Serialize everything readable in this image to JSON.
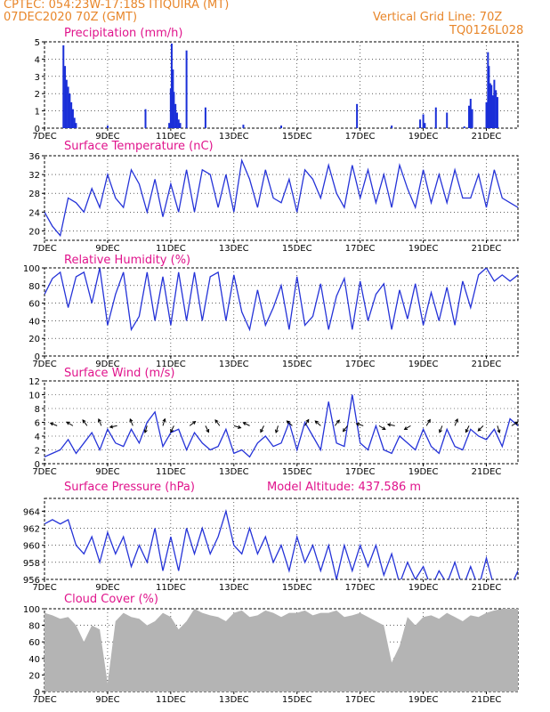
{
  "header": {
    "station": "CPTEC:   054:23W-17:18S   ITIQUIRA (MT)",
    "date": "07DEC2020 70Z (GMT)",
    "grid_line": "Vertical Grid Line: 70Z",
    "model": "TQ0126L028"
  },
  "colors": {
    "header": "#e8862a",
    "title": "#e0148c",
    "line": "#2533d8",
    "bar": "#1a2fd8",
    "cloud": "#b4b4b4"
  },
  "x_ticks": [
    "7DEC",
    "9DEC",
    "11DEC",
    "13DEC",
    "15DEC",
    "17DEC",
    "19DEC",
    "21DEC"
  ],
  "chart_data": [
    {
      "type": "bar",
      "title": "Precipitation (mm/h)",
      "x_day_range": [
        7,
        22
      ],
      "ylim": [
        0,
        5
      ],
      "y_ticks": [
        "0",
        "1",
        "2",
        "3",
        "4",
        "5"
      ],
      "bars": [
        [
          7.6,
          4.8
        ],
        [
          7.65,
          3.6
        ],
        [
          7.7,
          2.8
        ],
        [
          7.75,
          2.4
        ],
        [
          7.8,
          2.0
        ],
        [
          7.85,
          1.5
        ],
        [
          7.9,
          1.1
        ],
        [
          7.95,
          0.6
        ],
        [
          8.0,
          0.3
        ],
        [
          9.0,
          0.15
        ],
        [
          10.2,
          1.1
        ],
        [
          10.95,
          0.3
        ],
        [
          11.0,
          2.3
        ],
        [
          11.03,
          4.9
        ],
        [
          11.07,
          3.4
        ],
        [
          11.1,
          2.1
        ],
        [
          11.15,
          1.4
        ],
        [
          11.2,
          0.9
        ],
        [
          11.25,
          0.5
        ],
        [
          11.3,
          0.3
        ],
        [
          11.5,
          4.5
        ],
        [
          12.1,
          1.2
        ],
        [
          13.3,
          0.2
        ],
        [
          14.5,
          0.15
        ],
        [
          16.9,
          1.4
        ],
        [
          18.0,
          0.15
        ],
        [
          18.9,
          0.5
        ],
        [
          19.0,
          0.8
        ],
        [
          19.05,
          0.3
        ],
        [
          19.4,
          1.2
        ],
        [
          19.75,
          0.9
        ],
        [
          20.3,
          0.1
        ],
        [
          20.45,
          1.3
        ],
        [
          20.5,
          1.7
        ],
        [
          20.55,
          1.1
        ],
        [
          21.0,
          1.5
        ],
        [
          21.05,
          4.4
        ],
        [
          21.08,
          3.6
        ],
        [
          21.12,
          2.6
        ],
        [
          21.16,
          2.5
        ],
        [
          21.2,
          1.9
        ],
        [
          21.25,
          2.8
        ],
        [
          21.3,
          2.2
        ],
        [
          21.35,
          1.8
        ]
      ],
      "x_ticks": [
        "7DEC",
        "9DEC",
        "11DEC",
        "13DEC",
        "15DEC",
        "17DEC",
        "19DEC",
        "21DEC"
      ]
    },
    {
      "type": "line",
      "title": "Surface Temperature (nC)",
      "x_day_range": [
        7,
        22
      ],
      "ylim": [
        18,
        36
      ],
      "y_ticks": [
        "20",
        "24",
        "28",
        "32",
        "36"
      ],
      "y_tick_values": [
        20,
        24,
        28,
        32,
        36
      ],
      "x": [
        7.0,
        7.25,
        7.5,
        7.75,
        8.0,
        8.25,
        8.5,
        8.75,
        9.0,
        9.25,
        9.5,
        9.75,
        10.0,
        10.25,
        10.5,
        10.75,
        11.0,
        11.25,
        11.5,
        11.75,
        12.0,
        12.25,
        12.5,
        12.75,
        13.0,
        13.25,
        13.5,
        13.75,
        14.0,
        14.25,
        14.5,
        14.75,
        15.0,
        15.25,
        15.5,
        15.75,
        16.0,
        16.25,
        16.5,
        16.75,
        17.0,
        17.25,
        17.5,
        17.75,
        18.0,
        18.25,
        18.5,
        18.75,
        19.0,
        19.25,
        19.5,
        19.75,
        20.0,
        20.25,
        20.5,
        20.75,
        21.0,
        21.25,
        21.5,
        21.75,
        22.0
      ],
      "y": [
        24,
        21,
        19,
        27,
        26,
        24,
        29,
        25,
        32,
        27,
        25,
        33,
        30,
        24,
        31,
        23,
        30,
        24,
        33,
        24,
        33,
        32,
        25,
        32,
        24,
        35,
        31,
        25,
        33,
        27,
        26,
        31,
        24,
        33,
        31,
        27,
        34,
        28,
        25,
        34,
        27,
        33,
        26,
        32,
        25,
        34,
        29,
        25,
        33,
        26,
        32,
        26,
        33,
        27,
        27,
        32,
        25,
        33,
        27,
        26,
        25
      ]
    },
    {
      "type": "line",
      "title": "Relative Humidity (%)",
      "x_day_range": [
        7,
        22
      ],
      "ylim": [
        0,
        100
      ],
      "y_ticks": [
        "0",
        "20",
        "40",
        "60",
        "80",
        "100"
      ],
      "y_tick_values": [
        0,
        20,
        40,
        60,
        80,
        100
      ],
      "x": [
        7.0,
        7.25,
        7.5,
        7.75,
        8.0,
        8.25,
        8.5,
        8.75,
        9.0,
        9.25,
        9.5,
        9.75,
        10.0,
        10.25,
        10.5,
        10.75,
        11.0,
        11.25,
        11.5,
        11.75,
        12.0,
        12.25,
        12.5,
        12.75,
        13.0,
        13.25,
        13.5,
        13.75,
        14.0,
        14.25,
        14.5,
        14.75,
        15.0,
        15.25,
        15.5,
        15.75,
        16.0,
        16.25,
        16.5,
        16.75,
        17.0,
        17.25,
        17.5,
        17.75,
        18.0,
        18.25,
        18.5,
        18.75,
        19.0,
        19.25,
        19.5,
        19.75,
        20.0,
        20.25,
        20.5,
        20.75,
        21.0,
        21.25,
        21.5,
        21.75,
        22.0
      ],
      "y": [
        70,
        88,
        95,
        55,
        90,
        95,
        60,
        100,
        35,
        70,
        95,
        30,
        45,
        95,
        40,
        90,
        35,
        95,
        40,
        95,
        40,
        90,
        95,
        40,
        92,
        50,
        30,
        75,
        35,
        55,
        80,
        30,
        90,
        35,
        45,
        82,
        30,
        68,
        88,
        30,
        85,
        40,
        70,
        82,
        30,
        75,
        42,
        82,
        35,
        72,
        40,
        78,
        35,
        85,
        55,
        92,
        100,
        85,
        92,
        85,
        92
      ]
    },
    {
      "type": "line",
      "title": "Surface Wind (m/s)",
      "x_day_range": [
        7,
        22
      ],
      "ylim": [
        0,
        12
      ],
      "y_ticks": [
        "0",
        "2",
        "4",
        "6",
        "8",
        "10",
        "12"
      ],
      "y_tick_values": [
        0,
        2,
        4,
        6,
        8,
        10,
        12
      ],
      "x": [
        7.0,
        7.25,
        7.5,
        7.75,
        8.0,
        8.25,
        8.5,
        8.75,
        9.0,
        9.25,
        9.5,
        9.75,
        10.0,
        10.25,
        10.5,
        10.75,
        11.0,
        11.25,
        11.5,
        11.75,
        12.0,
        12.25,
        12.5,
        12.75,
        13.0,
        13.25,
        13.5,
        13.75,
        14.0,
        14.25,
        14.5,
        14.75,
        15.0,
        15.25,
        15.5,
        15.75,
        16.0,
        16.25,
        16.5,
        16.75,
        17.0,
        17.25,
        17.5,
        17.75,
        18.0,
        18.25,
        18.5,
        18.75,
        19.0,
        19.25,
        19.5,
        19.75,
        20.0,
        20.25,
        20.5,
        20.75,
        21.0,
        21.25,
        21.5,
        21.75,
        22.0
      ],
      "y": [
        1,
        1.5,
        2,
        3.5,
        1.5,
        3,
        4.5,
        2,
        5,
        3,
        2.5,
        5,
        3,
        6,
        7.5,
        2.5,
        4.5,
        5,
        2,
        4.5,
        3,
        2,
        2.5,
        5,
        1.5,
        2,
        1,
        3,
        4,
        2.5,
        3,
        6,
        2,
        6,
        4,
        2,
        9,
        3,
        2.5,
        10,
        3,
        2,
        5.5,
        2,
        1.5,
        4,
        3,
        2,
        5,
        2.5,
        1.5,
        5,
        2.5,
        2,
        5,
        4,
        3.5,
        5,
        2.5,
        6.5,
        5.5
      ],
      "arrows": [
        [
          7.4,
          -1.0,
          0.4
        ],
        [
          7.9,
          -1.0,
          0.6
        ],
        [
          8.35,
          -0.6,
          0.8
        ],
        [
          8.8,
          -0.4,
          1.0
        ],
        [
          9.3,
          -1.0,
          -0.2
        ],
        [
          9.8,
          -0.4,
          1.0
        ],
        [
          10.25,
          -0.3,
          -1.0
        ],
        [
          10.75,
          0.3,
          1.0
        ],
        [
          11.1,
          -0.5,
          -1.0
        ],
        [
          11.6,
          0.8,
          0.6
        ],
        [
          12.1,
          0.5,
          -1.0
        ],
        [
          12.55,
          -0.6,
          0.8
        ],
        [
          13.0,
          1.0,
          -0.3
        ],
        [
          13.5,
          -1.0,
          0.5
        ],
        [
          13.95,
          -0.5,
          -1.0
        ],
        [
          14.4,
          -0.3,
          -1.0
        ],
        [
          14.85,
          -0.9,
          0.8
        ],
        [
          15.25,
          0.6,
          1.0
        ],
        [
          15.75,
          -0.8,
          0.7
        ],
        [
          16.2,
          0.8,
          1.0
        ],
        [
          16.6,
          -0.7,
          -0.9
        ],
        [
          17.1,
          -1.0,
          0.3
        ],
        [
          17.6,
          1.0,
          -0.6
        ],
        [
          18.1,
          -1.0,
          0.2
        ],
        [
          18.6,
          -1.0,
          -0.6
        ],
        [
          19.1,
          0.6,
          1.0
        ],
        [
          19.6,
          -0.4,
          -1.0
        ],
        [
          20.0,
          0.4,
          1.0
        ],
        [
          20.45,
          -0.5,
          -1.0
        ],
        [
          20.9,
          -0.8,
          -0.8
        ],
        [
          21.35,
          0.3,
          -1.0
        ],
        [
          21.8,
          1.0,
          0.6
        ]
      ]
    },
    {
      "type": "line",
      "title": "Surface Pressure (hPa)",
      "subtitle": "Model Altitude: 437.586  m",
      "x_day_range": [
        7,
        22
      ],
      "ylim": [
        956,
        965.5
      ],
      "y_ticks": [
        "956",
        "958",
        "960",
        "962",
        "964"
      ],
      "y_tick_values": [
        956,
        958,
        960,
        962,
        964
      ],
      "x": [
        7.0,
        7.25,
        7.5,
        7.75,
        8.0,
        8.25,
        8.5,
        8.75,
        9.0,
        9.25,
        9.5,
        9.75,
        10.0,
        10.25,
        10.5,
        10.75,
        11.0,
        11.25,
        11.5,
        11.75,
        12.0,
        12.25,
        12.5,
        12.75,
        13.0,
        13.25,
        13.5,
        13.75,
        14.0,
        14.25,
        14.5,
        14.75,
        15.0,
        15.25,
        15.5,
        15.75,
        16.0,
        16.25,
        16.5,
        16.75,
        17.0,
        17.25,
        17.5,
        17.75,
        18.0,
        18.25,
        18.5,
        18.75,
        19.0,
        19.25,
        19.5,
        19.75,
        20.0,
        20.25,
        20.5,
        20.75,
        21.0,
        21.25,
        21.5,
        21.75,
        22.0
      ],
      "y": [
        962.5,
        963,
        962.5,
        963,
        960,
        959,
        961,
        958,
        961.5,
        959,
        961,
        957.5,
        960,
        958,
        962,
        957,
        961,
        957,
        962,
        959,
        962,
        959,
        961,
        964,
        960,
        959,
        962,
        959,
        961,
        958,
        960,
        957,
        961,
        958,
        960,
        957,
        960,
        956,
        960,
        957,
        960,
        957.5,
        960,
        956.5,
        959,
        955.5,
        958,
        956,
        957.5,
        955,
        957,
        955.5,
        958,
        955,
        957.5,
        955,
        958.5,
        955,
        954.5,
        955,
        957
      ]
    },
    {
      "type": "area",
      "title": "Cloud Cover (%)",
      "x_day_range": [
        7,
        22
      ],
      "ylim": [
        0,
        100
      ],
      "y_ticks": [
        "0",
        "20",
        "40",
        "60",
        "80",
        "100"
      ],
      "y_tick_values": [
        0,
        20,
        40,
        60,
        80,
        100
      ],
      "x": [
        7.0,
        7.25,
        7.5,
        7.75,
        8.0,
        8.25,
        8.5,
        8.75,
        9.0,
        9.25,
        9.5,
        9.75,
        10.0,
        10.25,
        10.5,
        10.75,
        11.0,
        11.25,
        11.5,
        11.75,
        12.0,
        12.25,
        12.5,
        12.75,
        13.0,
        13.25,
        13.5,
        13.75,
        14.0,
        14.25,
        14.5,
        14.75,
        15.0,
        15.25,
        15.5,
        15.75,
        16.0,
        16.25,
        16.5,
        16.75,
        17.0,
        17.25,
        17.5,
        17.75,
        18.0,
        18.25,
        18.5,
        18.75,
        19.0,
        19.25,
        19.5,
        19.75,
        20.0,
        20.25,
        20.5,
        20.75,
        21.0,
        21.25,
        21.5,
        21.75,
        22.0
      ],
      "y": [
        95,
        92,
        88,
        90,
        80,
        60,
        80,
        75,
        10,
        85,
        95,
        90,
        88,
        80,
        85,
        95,
        90,
        75,
        85,
        100,
        95,
        92,
        90,
        85,
        95,
        98,
        90,
        92,
        98,
        95,
        90,
        95,
        95,
        98,
        92,
        95,
        95,
        98,
        90,
        92,
        95,
        90,
        85,
        80,
        35,
        55,
        90,
        80,
        90,
        92,
        88,
        95,
        90,
        85,
        92,
        90,
        95,
        98,
        100,
        100,
        100
      ]
    }
  ]
}
